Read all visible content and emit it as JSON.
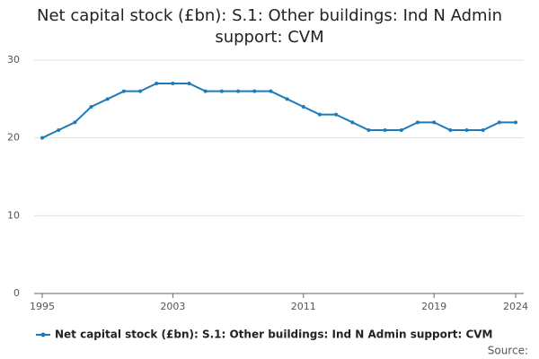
{
  "chart_data": {
    "type": "line",
    "title": "Net capital stock (£bn): S.1: Other buildings: Ind N Admin support: CVM",
    "x": [
      1995,
      1996,
      1997,
      1998,
      1999,
      2000,
      2001,
      2002,
      2003,
      2004,
      2005,
      2006,
      2007,
      2008,
      2009,
      2010,
      2011,
      2012,
      2013,
      2014,
      2015,
      2016,
      2017,
      2018,
      2019,
      2020,
      2021,
      2022,
      2023,
      2024
    ],
    "series": [
      {
        "name": "Net capital stock (£bn): S.1: Other buildings: Ind N Admin support: CVM",
        "color": "#1f7ab8",
        "values": [
          20,
          21,
          22,
          24,
          25,
          26,
          26,
          27,
          27,
          27,
          26,
          26,
          26,
          26,
          26,
          25,
          24,
          23,
          23,
          22,
          21,
          21,
          21,
          22,
          22,
          21,
          21,
          21,
          22,
          22
        ]
      }
    ],
    "xlim": [
      1995,
      2024
    ],
    "xticks": [
      1995,
      2003,
      2011,
      2019,
      2024
    ],
    "ylim": [
      0,
      30
    ],
    "yticks": [
      0,
      10,
      20,
      30
    ],
    "grid": true,
    "legend": "bottom",
    "source": "Source:"
  }
}
